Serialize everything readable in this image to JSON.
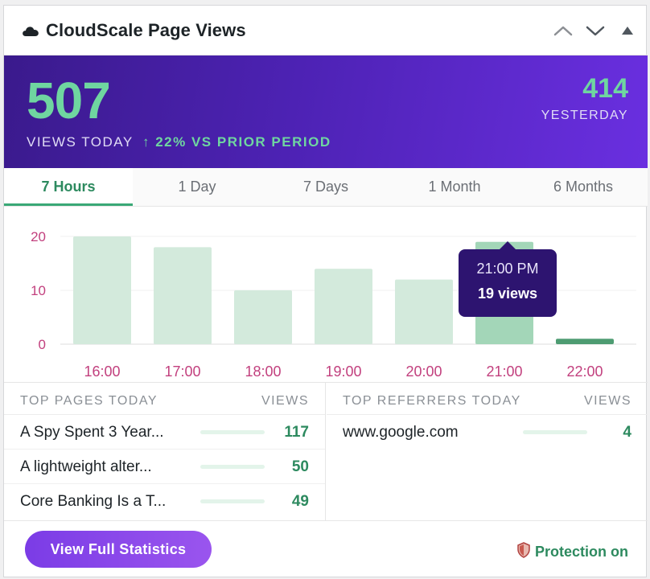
{
  "widget": {
    "title": "CloudScale Page Views",
    "icons": {
      "title": "cloud-icon",
      "controls": [
        "chevron-up-icon",
        "chevron-down-icon",
        "collapse-triangle-icon"
      ]
    }
  },
  "hero": {
    "views_today": "507",
    "views_today_label": "VIEWS TODAY",
    "change": "↑ 22% VS PRIOR PERIOD",
    "yesterday_value": "414",
    "yesterday_label": "YESTERDAY"
  },
  "tabs": [
    {
      "label": "7 Hours",
      "active": true
    },
    {
      "label": "1 Day",
      "active": false
    },
    {
      "label": "7 Days",
      "active": false
    },
    {
      "label": "1 Month",
      "active": false
    },
    {
      "label": "6 Months",
      "active": false
    }
  ],
  "chart_data": {
    "type": "bar",
    "categories": [
      "16:00",
      "17:00",
      "18:00",
      "19:00",
      "20:00",
      "21:00",
      "22:00"
    ],
    "values": [
      20,
      18,
      10,
      14,
      12,
      19,
      1
    ],
    "yticks": [
      "20",
      "10",
      "0"
    ],
    "ylim": [
      0,
      20
    ],
    "grid": true,
    "highlighted_index": 5,
    "colors": {
      "bar": "#d3eadc",
      "bar_highlight": "#a3d6b8",
      "bar_last": "#4e9c72",
      "label": "#c2407e"
    },
    "tooltip": {
      "time": "21:00 PM",
      "value": "19 views"
    }
  },
  "top_pages": {
    "header_name": "TOP PAGES TODAY",
    "header_views": "VIEWS",
    "rows": [
      {
        "title": "A Spy Spent 3 Year...",
        "views": "117",
        "fraction": 1.0
      },
      {
        "title": "A lightweight alter...",
        "views": "50",
        "fraction": 0.43
      },
      {
        "title": "Core Banking Is a T...",
        "views": "49",
        "fraction": 0.42
      }
    ]
  },
  "top_referrers": {
    "header_name": "TOP REFERRERS TODAY",
    "header_views": "VIEWS",
    "rows": [
      {
        "title": "www.google.com",
        "views": "4",
        "fraction": 1.0
      }
    ]
  },
  "footer": {
    "cta_label": "View Full Statistics",
    "protection_label": "Protection on",
    "protection_icon": "shield-icon"
  },
  "colors": {
    "accent_green": "#6fd6a0",
    "accent_purple": "#5a27c8",
    "brand_pink": "#c2407e"
  }
}
